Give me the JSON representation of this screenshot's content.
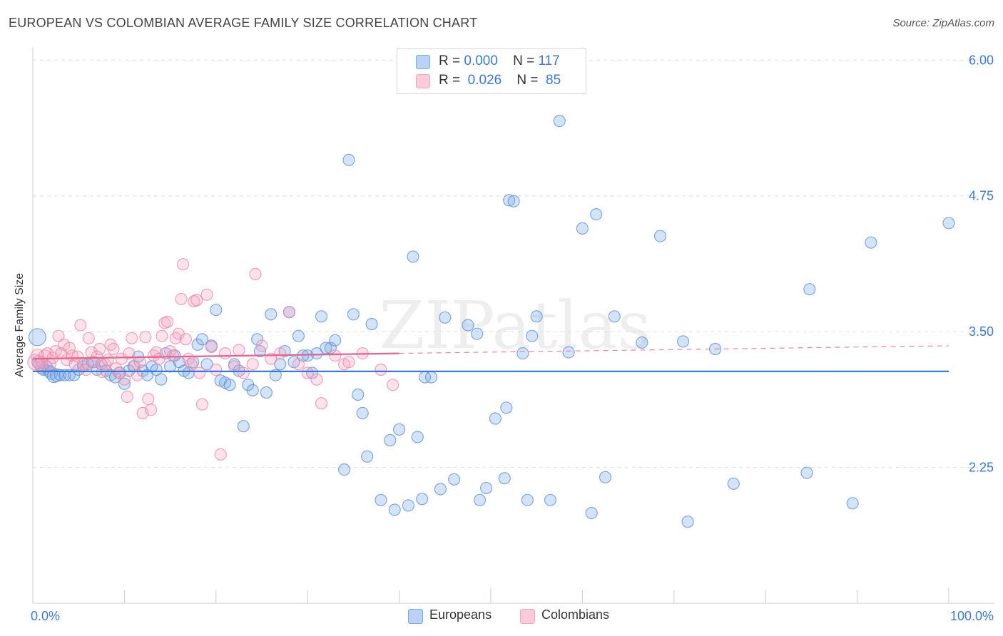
{
  "chart_data": {
    "type": "scatter",
    "title": "EUROPEAN VS COLOMBIAN AVERAGE FAMILY SIZE CORRELATION CHART",
    "source": "Source: ZipAtlas.com",
    "ylabel": "Average Family Size",
    "xlabel": "",
    "xlim": [
      0,
      100
    ],
    "ylim": [
      1.0,
      6.12
    ],
    "x_tick_labels": {
      "min": "0.0%",
      "max": "100.0%"
    },
    "y_ticks": [
      {
        "value": 6.0,
        "label": "6.00"
      },
      {
        "value": 4.75,
        "label": "4.75"
      },
      {
        "value": 3.5,
        "label": "3.50"
      },
      {
        "value": 2.25,
        "label": "2.25"
      }
    ],
    "grid": true,
    "legend_position": "top-center",
    "watermark": "ZIPatlas",
    "series": [
      {
        "name": "Europeans",
        "color": "#7aaae8",
        "stroke": "#5b8fd6",
        "line_color": "#3b78d8",
        "r_label": "R =",
        "r_value": "0.000",
        "n_label": "N =",
        "n_value": "117",
        "trend": [
          [
            0,
            3.134
          ],
          [
            100,
            3.134
          ]
        ],
        "points": [
          [
            0.5,
            3.45,
            12
          ],
          [
            0.6,
            3.22,
            9
          ],
          [
            1.0,
            3.17,
            9
          ],
          [
            1.2,
            3.15,
            8
          ],
          [
            1.5,
            3.18,
            8
          ],
          [
            1.7,
            3.14,
            8
          ],
          [
            2.0,
            3.12,
            9
          ],
          [
            2.3,
            3.09,
            9
          ],
          [
            2.6,
            3.1,
            9
          ],
          [
            3.0,
            3.1,
            8
          ],
          [
            3.5,
            3.1,
            8
          ],
          [
            4.0,
            3.1,
            8
          ],
          [
            4.5,
            3.1,
            8
          ],
          [
            5.0,
            3.15,
            8
          ],
          [
            5.5,
            3.18,
            8
          ],
          [
            6.0,
            3.2,
            8
          ],
          [
            6.5,
            3.22,
            8
          ],
          [
            7.0,
            3.15,
            8
          ],
          [
            7.5,
            3.2,
            8
          ],
          [
            8.0,
            3.14,
            8
          ],
          [
            8.5,
            3.1,
            8
          ],
          [
            9.0,
            3.08,
            8
          ],
          [
            9.5,
            3.12,
            8
          ],
          [
            10.0,
            3.02,
            8
          ],
          [
            10.5,
            3.14,
            8
          ],
          [
            11.0,
            3.18,
            8
          ],
          [
            11.5,
            3.27,
            8
          ],
          [
            12.0,
            3.14,
            8
          ],
          [
            12.5,
            3.1,
            8
          ],
          [
            13.0,
            3.18,
            8
          ],
          [
            13.5,
            3.15,
            8
          ],
          [
            14.0,
            3.06,
            8
          ],
          [
            14.5,
            3.3,
            8
          ],
          [
            15.0,
            3.18,
            8
          ],
          [
            15.5,
            3.28,
            8
          ],
          [
            16.0,
            3.22,
            8
          ],
          [
            16.5,
            3.14,
            8
          ],
          [
            17.0,
            3.12,
            8
          ],
          [
            17.5,
            3.22,
            8
          ],
          [
            18.0,
            3.38,
            8
          ],
          [
            18.5,
            3.43,
            8
          ],
          [
            19.0,
            3.2,
            8
          ],
          [
            19.5,
            3.37,
            8
          ],
          [
            20.0,
            3.7,
            8
          ],
          [
            20.5,
            3.05,
            8
          ],
          [
            21.0,
            3.03,
            8
          ],
          [
            21.5,
            3.01,
            8
          ],
          [
            22.0,
            3.2,
            8
          ],
          [
            22.5,
            3.14,
            8
          ],
          [
            23.0,
            2.63,
            8
          ],
          [
            23.5,
            3.01,
            8
          ],
          [
            24.0,
            2.96,
            8
          ],
          [
            24.5,
            3.43,
            8
          ],
          [
            24.8,
            3.32,
            8
          ],
          [
            25.5,
            2.94,
            8
          ],
          [
            26.0,
            3.66,
            8
          ],
          [
            26.5,
            3.1,
            8
          ],
          [
            27.0,
            3.2,
            8
          ],
          [
            27.5,
            3.32,
            8
          ],
          [
            28.0,
            3.68,
            8
          ],
          [
            28.5,
            3.22,
            8
          ],
          [
            29.0,
            3.46,
            8
          ],
          [
            29.5,
            3.28,
            8
          ],
          [
            30.0,
            3.28,
            8
          ],
          [
            30.5,
            3.12,
            8
          ],
          [
            31.0,
            3.3,
            8
          ],
          [
            31.5,
            3.64,
            8
          ],
          [
            32.0,
            3.35,
            8
          ],
          [
            32.5,
            3.35,
            8
          ],
          [
            33.0,
            3.42,
            8
          ],
          [
            34.0,
            2.23,
            8
          ],
          [
            34.5,
            5.08,
            8
          ],
          [
            35.0,
            3.66,
            8
          ],
          [
            35.5,
            2.92,
            8
          ],
          [
            36.0,
            2.75,
            8
          ],
          [
            36.5,
            2.35,
            8
          ],
          [
            37.0,
            3.57,
            8
          ],
          [
            38.0,
            1.95,
            8
          ],
          [
            39.0,
            2.5,
            8
          ],
          [
            39.5,
            1.86,
            8
          ],
          [
            40.0,
            2.6,
            8
          ],
          [
            41.0,
            1.9,
            8
          ],
          [
            41.5,
            4.19,
            8
          ],
          [
            42.0,
            2.53,
            8
          ],
          [
            42.5,
            1.96,
            8
          ],
          [
            42.8,
            3.08,
            8
          ],
          [
            43.5,
            3.08,
            8
          ],
          [
            44.5,
            2.05,
            8
          ],
          [
            45.0,
            3.63,
            8
          ],
          [
            46.0,
            2.14,
            8
          ],
          [
            47.5,
            3.56,
            8
          ],
          [
            48.5,
            3.48,
            8
          ],
          [
            48.8,
            1.95,
            8
          ],
          [
            49.5,
            2.06,
            8
          ],
          [
            50.5,
            2.7,
            8
          ],
          [
            51.5,
            2.15,
            8
          ],
          [
            51.7,
            2.8,
            8
          ],
          [
            52.0,
            4.71,
            8
          ],
          [
            52.5,
            4.7,
            8
          ],
          [
            53.5,
            3.3,
            8
          ],
          [
            54.0,
            1.95,
            8
          ],
          [
            54.5,
            3.46,
            8
          ],
          [
            55.0,
            3.64,
            8
          ],
          [
            56.5,
            1.95,
            8
          ],
          [
            57.5,
            5.44,
            8
          ],
          [
            58.5,
            3.31,
            8
          ],
          [
            60.0,
            4.45,
            8
          ],
          [
            61.0,
            1.83,
            8
          ],
          [
            61.5,
            4.58,
            8
          ],
          [
            62.5,
            2.16,
            8
          ],
          [
            63.5,
            3.64,
            8
          ],
          [
            66.5,
            3.4,
            8
          ],
          [
            68.5,
            4.38,
            8
          ],
          [
            71.0,
            3.41,
            8
          ],
          [
            71.5,
            1.75,
            8
          ],
          [
            74.5,
            3.34,
            8
          ],
          [
            76.5,
            2.1,
            8
          ],
          [
            84.5,
            2.2,
            8
          ],
          [
            84.8,
            3.89,
            8
          ],
          [
            89.5,
            1.92,
            8
          ],
          [
            91.5,
            4.32,
            8
          ],
          [
            100.0,
            4.5,
            8
          ]
        ]
      },
      {
        "name": "Colombians",
        "color": "#f7a5bd",
        "stroke": "#ee86a6",
        "line_color": "#e8628e",
        "r_label": "R =",
        "r_value": "0.026",
        "n_label": "N =",
        "n_value": "85",
        "trend": [
          [
            0,
            3.25
          ],
          [
            40,
            3.3
          ],
          [
            100,
            3.37
          ]
        ],
        "trend_solid_until": 40,
        "points": [
          [
            0.3,
            3.22,
            11
          ],
          [
            0.5,
            3.28,
            9
          ],
          [
            0.8,
            3.2,
            9
          ],
          [
            1.0,
            3.22,
            8
          ],
          [
            1.3,
            3.28,
            8
          ],
          [
            1.6,
            3.3,
            8
          ],
          [
            1.9,
            3.2,
            8
          ],
          [
            2.2,
            3.26,
            8
          ],
          [
            2.5,
            3.32,
            8
          ],
          [
            2.8,
            3.46,
            8
          ],
          [
            3.1,
            3.3,
            8
          ],
          [
            3.4,
            3.38,
            8
          ],
          [
            3.7,
            3.24,
            8
          ],
          [
            4.0,
            3.35,
            8
          ],
          [
            4.3,
            3.28,
            8
          ],
          [
            4.6,
            3.2,
            8
          ],
          [
            4.9,
            3.27,
            8
          ],
          [
            5.2,
            3.56,
            8
          ],
          [
            5.5,
            3.2,
            8
          ],
          [
            5.8,
            3.15,
            8
          ],
          [
            6.1,
            3.44,
            8
          ],
          [
            6.4,
            3.31,
            8
          ],
          [
            6.7,
            3.22,
            8
          ],
          [
            7.0,
            3.27,
            8
          ],
          [
            7.3,
            3.34,
            8
          ],
          [
            7.6,
            3.13,
            8
          ],
          [
            7.9,
            3.2,
            8
          ],
          [
            8.2,
            3.24,
            8
          ],
          [
            8.5,
            3.38,
            8
          ],
          [
            8.8,
            3.34,
            8
          ],
          [
            9.1,
            3.16,
            8
          ],
          [
            9.4,
            3.12,
            8
          ],
          [
            9.7,
            3.25,
            8
          ],
          [
            10.0,
            3.06,
            8
          ],
          [
            10.3,
            2.9,
            8
          ],
          [
            10.5,
            3.3,
            8
          ],
          [
            10.8,
            3.44,
            8
          ],
          [
            11.1,
            3.18,
            8
          ],
          [
            11.4,
            3.1,
            8
          ],
          [
            11.7,
            3.22,
            8
          ],
          [
            12.0,
            2.75,
            8
          ],
          [
            12.3,
            3.45,
            8
          ],
          [
            12.6,
            2.88,
            8
          ],
          [
            12.9,
            2.78,
            8
          ],
          [
            13.2,
            3.28,
            8
          ],
          [
            13.5,
            3.31,
            8
          ],
          [
            13.8,
            3.25,
            8
          ],
          [
            14.1,
            3.46,
            8
          ],
          [
            14.4,
            3.58,
            8
          ],
          [
            14.7,
            3.59,
            8
          ],
          [
            15.0,
            3.32,
            8
          ],
          [
            15.3,
            3.28,
            8
          ],
          [
            15.6,
            3.44,
            8
          ],
          [
            15.9,
            3.48,
            8
          ],
          [
            16.2,
            3.8,
            8
          ],
          [
            16.4,
            4.12,
            8
          ],
          [
            16.7,
            3.43,
            8
          ],
          [
            17.0,
            3.25,
            8
          ],
          [
            17.3,
            3.2,
            8
          ],
          [
            17.6,
            3.78,
            8
          ],
          [
            17.9,
            3.79,
            8
          ],
          [
            18.2,
            3.12,
            8
          ],
          [
            18.5,
            2.83,
            8
          ],
          [
            19.0,
            3.84,
            8
          ],
          [
            19.5,
            3.36,
            8
          ],
          [
            20.0,
            3.15,
            8
          ],
          [
            20.5,
            2.37,
            8
          ],
          [
            21.0,
            3.3,
            8
          ],
          [
            22.0,
            3.18,
            8
          ],
          [
            22.5,
            3.33,
            8
          ],
          [
            23.0,
            3.12,
            8
          ],
          [
            24.0,
            3.2,
            8
          ],
          [
            24.3,
            4.03,
            8
          ],
          [
            25.0,
            3.37,
            8
          ],
          [
            26.0,
            3.25,
            8
          ],
          [
            27.0,
            3.3,
            8
          ],
          [
            28.0,
            3.68,
            8
          ],
          [
            29.0,
            3.2,
            8
          ],
          [
            30.0,
            3.12,
            8
          ],
          [
            31.0,
            3.06,
            8
          ],
          [
            33.0,
            3.28,
            8
          ],
          [
            34.0,
            3.2,
            8
          ],
          [
            36.0,
            3.3,
            8
          ],
          [
            38.0,
            3.15,
            8
          ],
          [
            39.3,
            3.01,
            8
          ],
          [
            31.5,
            2.84,
            8
          ],
          [
            34.5,
            3.22,
            8
          ]
        ]
      }
    ]
  }
}
